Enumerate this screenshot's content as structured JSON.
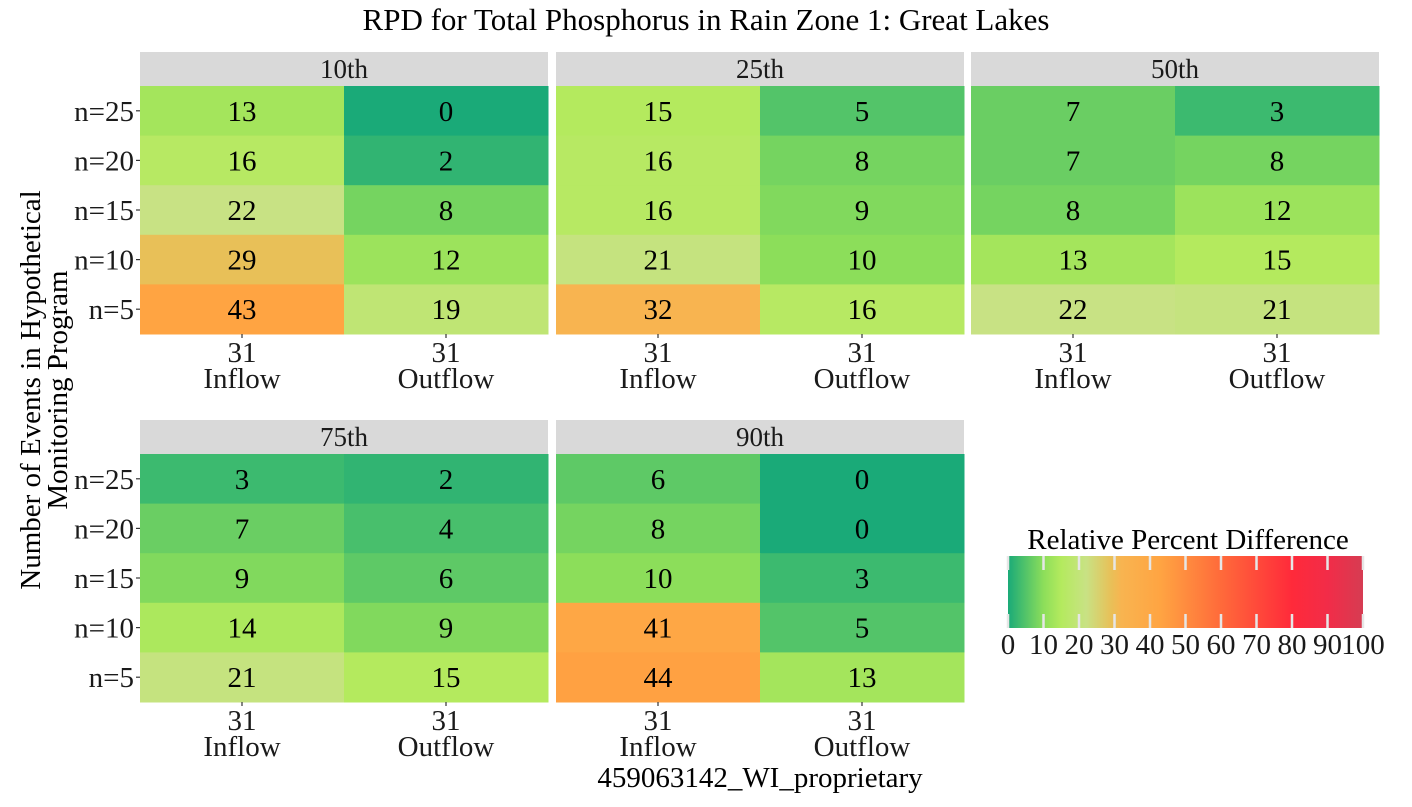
{
  "chart_data": {
    "type": "heatmap",
    "title": "RPD for Total Phosphorus in Rain Zone 1: Great Lakes",
    "caption": "459063142_WI_proprietary",
    "ylabel": [
      "Number of Events in Hypothetical",
      "Monitoring Program"
    ],
    "y_categories": [
      "n=25",
      "n=20",
      "n=15",
      "n=10",
      "n=5"
    ],
    "x_categories": [
      {
        "count": "31",
        "label": "Inflow"
      },
      {
        "count": "31",
        "label": "Outflow"
      }
    ],
    "panels": [
      {
        "name": "10th",
        "values": [
          [
            13,
            0
          ],
          [
            16,
            2
          ],
          [
            22,
            8
          ],
          [
            29,
            12
          ],
          [
            43,
            19
          ]
        ]
      },
      {
        "name": "25th",
        "values": [
          [
            15,
            5
          ],
          [
            16,
            8
          ],
          [
            16,
            9
          ],
          [
            21,
            10
          ],
          [
            32,
            16
          ]
        ]
      },
      {
        "name": "50th",
        "values": [
          [
            7,
            3
          ],
          [
            7,
            8
          ],
          [
            8,
            12
          ],
          [
            13,
            15
          ],
          [
            22,
            21
          ]
        ]
      },
      {
        "name": "75th",
        "values": [
          [
            3,
            2
          ],
          [
            7,
            4
          ],
          [
            9,
            6
          ],
          [
            14,
            9
          ],
          [
            21,
            15
          ]
        ]
      },
      {
        "name": "90th",
        "values": [
          [
            6,
            0
          ],
          [
            8,
            0
          ],
          [
            10,
            3
          ],
          [
            41,
            5
          ],
          [
            44,
            13
          ]
        ]
      }
    ],
    "legend": {
      "title": "Relative Percent Difference",
      "range": [
        0,
        100
      ],
      "ticks": [
        0,
        10,
        20,
        30,
        40,
        50,
        60,
        70,
        80,
        90,
        100
      ],
      "position": "bottom-right"
    },
    "color_stops": [
      {
        "value": 0,
        "color": "#1aaa78"
      },
      {
        "value": 10,
        "color": "#8cde5a"
      },
      {
        "value": 15,
        "color": "#b4ea5e"
      },
      {
        "value": 22,
        "color": "#c8e284"
      },
      {
        "value": 29,
        "color": "#e8c058"
      },
      {
        "value": 32,
        "color": "#f8b450"
      },
      {
        "value": 43,
        "color": "#ffa442"
      },
      {
        "value": 60,
        "color": "#ff6a3a"
      },
      {
        "value": 80,
        "color": "#ff2a3a"
      },
      {
        "value": 90,
        "color": "#f22c48"
      },
      {
        "value": 100,
        "color": "#d63c52"
      }
    ],
    "strip_color": "#d9d9d9"
  }
}
